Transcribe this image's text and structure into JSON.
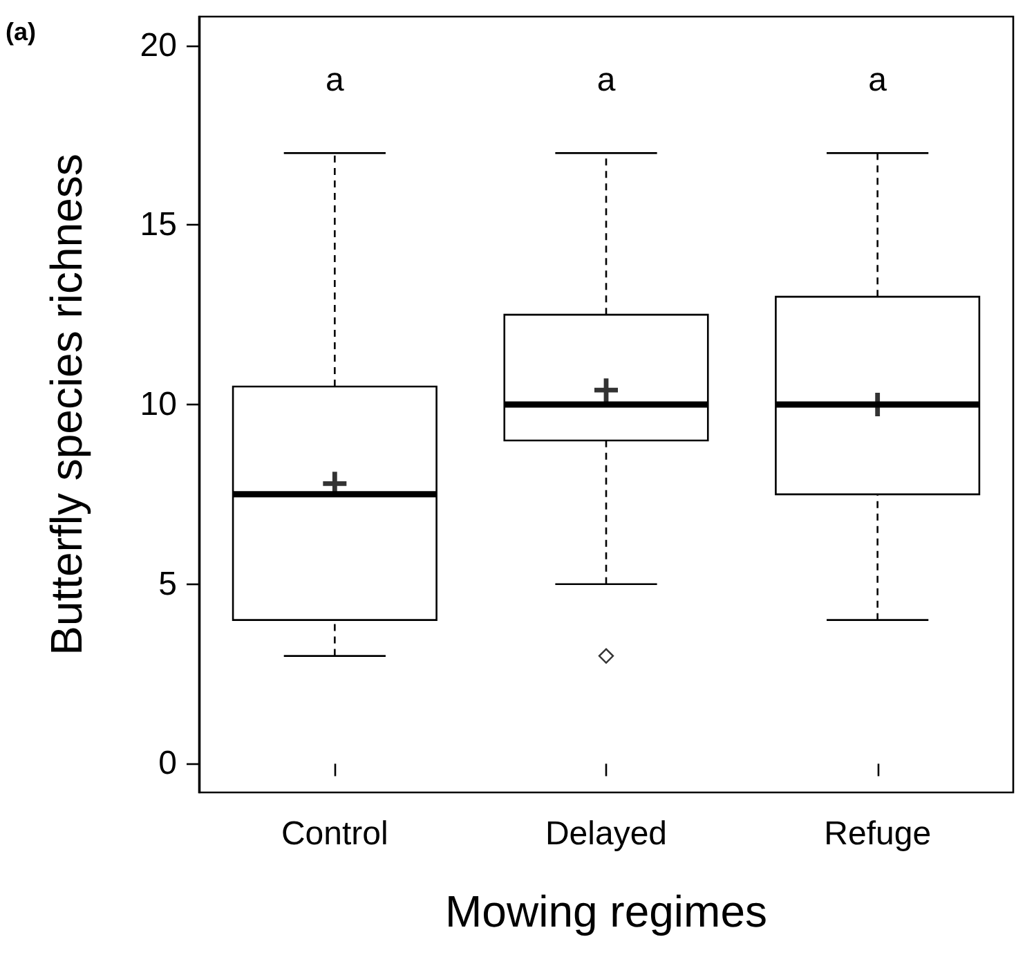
{
  "chart_data": {
    "type": "box",
    "categories": [
      "Control",
      "Delayed",
      "Refuge"
    ],
    "boxes": [
      {
        "low": 3,
        "q1": 4,
        "median": 7.5,
        "q3": 10.5,
        "high": 17,
        "mean": 7.8
      },
      {
        "low": 5,
        "q1": 9,
        "median": 10,
        "q3": 12.5,
        "high": 17,
        "mean": 10.4,
        "outliers": [
          3
        ]
      },
      {
        "low": 4,
        "q1": 7.5,
        "median": 10,
        "q3": 13,
        "high": 17,
        "mean": 10
      }
    ],
    "xlabel": "Mowing regimes",
    "ylabel": "Butterfly species richness",
    "ylim": [
      -0.8,
      20.8
    ],
    "yticks": [
      0,
      5,
      10,
      15,
      20
    ],
    "annotations": [
      "(a)",
      "a",
      "a",
      "a"
    ]
  }
}
